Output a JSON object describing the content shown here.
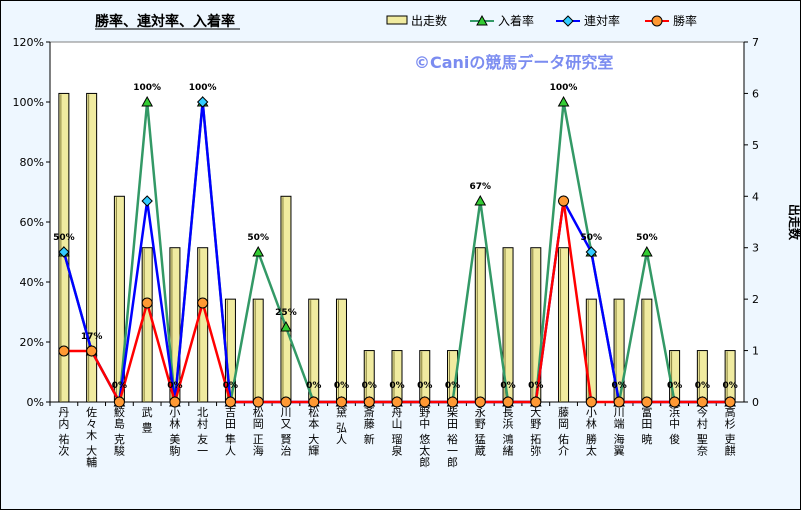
{
  "chart_data": {
    "type": "bar",
    "title": "勝率、連対率、入着率",
    "watermark": "©Caniの競馬データ研究室",
    "y2label": "出走数",
    "ylim": [
      0,
      120
    ],
    "y2lim": [
      0,
      7
    ],
    "y_ticks": [
      "0%",
      "20%",
      "40%",
      "60%",
      "80%",
      "100%",
      "120%"
    ],
    "y2_ticks": [
      "0",
      "1",
      "2",
      "3",
      "4",
      "5",
      "6",
      "7"
    ],
    "categories": [
      "丹内 祐次",
      "佐々木 大輔",
      "鮫島 克駿",
      "武 豊",
      "小林 美駒",
      "北村 友一",
      "吉田 隼人",
      "松岡 正海",
      "川又 賢治",
      "松本 大輝",
      "黛 弘人",
      "斎藤 新",
      "舟山 瑠泉",
      "野中 悠太郎",
      "柴田 裕一郎",
      "永野 猛蔵",
      "長浜 鴻緒",
      "大野 拓弥",
      "藤岡 佑介",
      "小林 勝太",
      "川端 海翼",
      "富田 暁",
      "浜中 俊",
      "今村 聖奈",
      "高杉 吏麒"
    ],
    "series": [
      {
        "name": "出走数",
        "kind": "bar",
        "color": "#f0eba0",
        "values": [
          6,
          6,
          4,
          3,
          3,
          3,
          2,
          2,
          4,
          2,
          2,
          1,
          1,
          1,
          1,
          3,
          3,
          3,
          3,
          2,
          2,
          2,
          1,
          1,
          1
        ]
      },
      {
        "name": "入着率",
        "kind": "line",
        "color": "#339966",
        "values": [
          50,
          17,
          0,
          100,
          0,
          100,
          0,
          50,
          25,
          0,
          0,
          0,
          0,
          0,
          0,
          67,
          0,
          0,
          100,
          50,
          0,
          50,
          0,
          0,
          0
        ]
      },
      {
        "name": "連対率",
        "kind": "line",
        "color": "#0000ff",
        "values": [
          50,
          17,
          0,
          67,
          0,
          100,
          0,
          0,
          0,
          0,
          0,
          0,
          0,
          0,
          0,
          0,
          0,
          0,
          67,
          50,
          0,
          0,
          0,
          0,
          0
        ]
      },
      {
        "name": "勝率",
        "kind": "line",
        "color": "#ff0000",
        "values": [
          17,
          17,
          0,
          33,
          0,
          33,
          0,
          0,
          0,
          0,
          0,
          0,
          0,
          0,
          0,
          0,
          0,
          0,
          67,
          0,
          0,
          0,
          0,
          0,
          0
        ]
      }
    ],
    "data_labels": [
      {
        "index": 0,
        "text": "50%"
      },
      {
        "index": 1,
        "text": "17%"
      },
      {
        "index": 2,
        "text": "0%"
      },
      {
        "index": 3,
        "text": "100%"
      },
      {
        "index": 4,
        "text": "0%"
      },
      {
        "index": 5,
        "text": "100%"
      },
      {
        "index": 6,
        "text": "0%"
      },
      {
        "index": 7,
        "text": "50%"
      },
      {
        "index": 8,
        "text": "25%"
      },
      {
        "index": 9,
        "text": "0%"
      },
      {
        "index": 10,
        "text": "0%"
      },
      {
        "index": 11,
        "text": "0%"
      },
      {
        "index": 12,
        "text": "0%"
      },
      {
        "index": 13,
        "text": "0%"
      },
      {
        "index": 14,
        "text": "0%"
      },
      {
        "index": 15,
        "text": "67%"
      },
      {
        "index": 16,
        "text": "0%"
      },
      {
        "index": 17,
        "text": "0%"
      },
      {
        "index": 18,
        "text": "100%"
      },
      {
        "index": 19,
        "text": "50%"
      },
      {
        "index": 20,
        "text": "0%"
      },
      {
        "index": 21,
        "text": "50%"
      },
      {
        "index": 22,
        "text": "0%"
      },
      {
        "index": 23,
        "text": "0%"
      },
      {
        "index": 24,
        "text": "0%"
      }
    ],
    "legend": [
      "出走数",
      "入着率",
      "連対率",
      "勝率"
    ],
    "legend_position": "top-right",
    "plot_background": "#ffffff",
    "chart_background": "#eef7ff"
  }
}
